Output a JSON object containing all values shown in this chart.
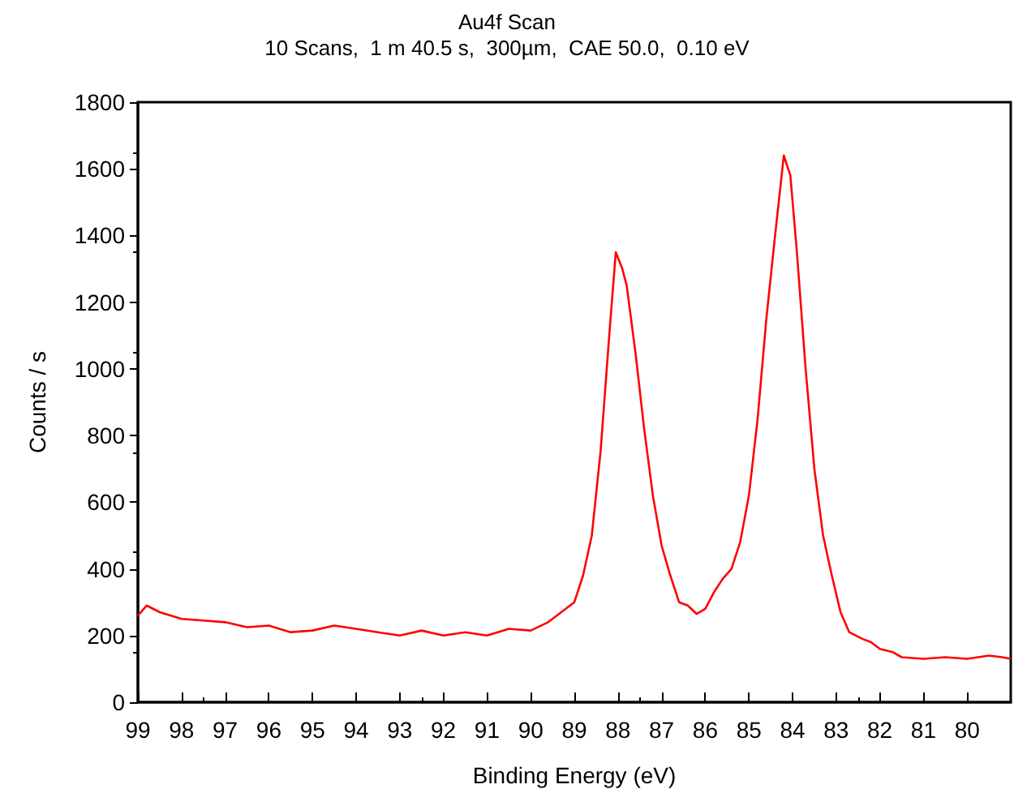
{
  "chart_data": {
    "type": "line",
    "title": "Au4f Scan",
    "subtitle": "10 Scans,  1 m 40.5 s,  300µm,  CAE 50.0,  0.10 eV",
    "xlabel": "Binding Energy (eV)",
    "ylabel": "Counts / s",
    "xlim": [
      99,
      79
    ],
    "xticks": [
      99,
      98,
      97,
      96,
      95,
      94,
      93,
      92,
      91,
      90,
      89,
      88,
      87,
      86,
      85,
      84,
      83,
      82,
      81,
      80
    ],
    "ylim": [
      0,
      1800
    ],
    "yticks": [
      0,
      200,
      400,
      600,
      800,
      1000,
      1200,
      1400,
      1600,
      1800
    ],
    "grid": false,
    "marker": "none",
    "line_style": "solid",
    "series": [
      {
        "color": "#ff0000",
        "x": [
          99,
          98.8,
          98.5,
          98,
          97.5,
          97,
          96.5,
          96,
          95.5,
          95,
          94.5,
          94,
          93.5,
          93,
          92.5,
          92,
          91.5,
          91,
          90.5,
          90,
          89.6,
          89.3,
          89,
          88.8,
          88.6,
          88.4,
          88.2,
          88.05,
          87.9,
          87.8,
          87.6,
          87.4,
          87.2,
          87,
          86.8,
          86.6,
          86.4,
          86.2,
          86,
          85.8,
          85.6,
          85.4,
          85.2,
          85,
          84.8,
          84.6,
          84.4,
          84.2,
          84.05,
          83.9,
          83.7,
          83.5,
          83.3,
          83.1,
          82.9,
          82.7,
          82.4,
          82.2,
          82,
          81.7,
          81.5,
          81,
          80.5,
          80,
          79.5,
          79.2,
          79
        ],
        "values": [
          260,
          290,
          270,
          250,
          245,
          240,
          225,
          230,
          210,
          215,
          230,
          220,
          210,
          200,
          215,
          200,
          210,
          200,
          220,
          215,
          240,
          270,
          300,
          380,
          500,
          750,
          1100,
          1350,
          1300,
          1250,
          1050,
          820,
          620,
          470,
          380,
          300,
          290,
          265,
          280,
          330,
          370,
          400,
          480,
          620,
          850,
          1150,
          1400,
          1640,
          1580,
          1350,
          1000,
          700,
          500,
          380,
          270,
          210,
          190,
          180,
          160,
          150,
          135,
          130,
          135,
          130,
          140,
          135,
          130
        ]
      }
    ]
  }
}
